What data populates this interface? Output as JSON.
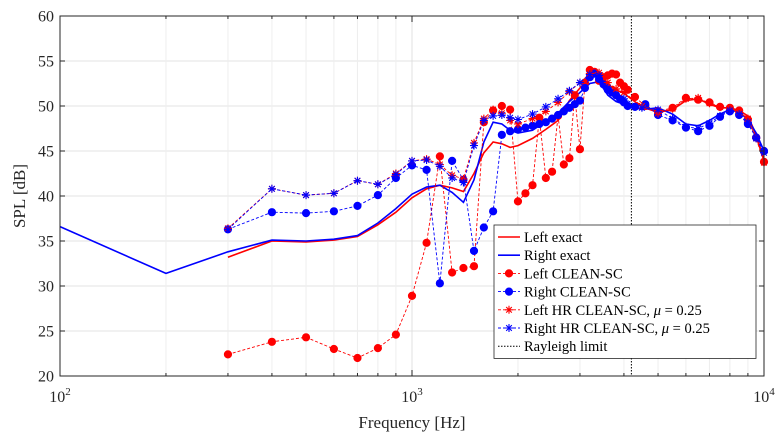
{
  "chart_data": {
    "type": "line",
    "xlabel": "Frequency [Hz]",
    "ylabel": "SPL [dB]",
    "xscale": "log",
    "xlim": [
      100,
      10000
    ],
    "ylim": [
      20,
      60
    ],
    "grid": true,
    "legend_position": "bottom-right",
    "x_ticks": [
      {
        "value": 100,
        "base": "10",
        "exp": "2"
      },
      {
        "value": 1000,
        "base": "10",
        "exp": "3"
      },
      {
        "value": 10000,
        "base": "10",
        "exp": "4"
      }
    ],
    "y_ticks": [
      "20",
      "25",
      "30",
      "35",
      "40",
      "45",
      "50",
      "55",
      "60"
    ],
    "vlines": [
      {
        "name": "Rayleigh limit",
        "x": 4200,
        "color": "#000000",
        "style": "dotted"
      }
    ],
    "series": [
      {
        "name": "Left exact",
        "color": "#ff0000",
        "style": "solid",
        "marker": "none",
        "x": [
          300,
          400,
          500,
          600,
          700,
          800,
          900,
          1000,
          1100,
          1200,
          1300,
          1400,
          1500,
          1600,
          1700,
          1800,
          1900,
          2000,
          2200,
          2400,
          2600,
          2800,
          3000,
          3200,
          3400,
          3600,
          3800,
          4000,
          4500,
          5000,
          5500,
          6000,
          6500,
          7000,
          7500,
          8000,
          8500,
          9000,
          9500,
          10000
        ],
        "y": [
          33.2,
          35.0,
          34.9,
          35.1,
          35.5,
          36.8,
          38.2,
          39.8,
          40.8,
          41.2,
          40.9,
          40.5,
          42.5,
          44.8,
          46.0,
          45.8,
          45.4,
          45.6,
          46.4,
          47.4,
          48.4,
          50.6,
          52.0,
          53.2,
          53.4,
          52.4,
          51.8,
          51.4,
          49.9,
          49.3,
          49.6,
          50.6,
          50.8,
          50.2,
          49.8,
          49.8,
          49.5,
          48.9,
          46.8,
          44.0
        ]
      },
      {
        "name": "Right exact",
        "color": "#0000ff",
        "style": "solid",
        "marker": "none",
        "x": [
          100,
          200,
          300,
          400,
          500,
          600,
          700,
          800,
          900,
          1000,
          1100,
          1200,
          1300,
          1400,
          1500,
          1600,
          1700,
          1800,
          1900,
          2000,
          2200,
          2400,
          2600,
          2800,
          3000,
          3200,
          3400,
          3600,
          3800,
          4000,
          4500,
          5000,
          5500,
          6000,
          6500,
          7000,
          7500,
          8000,
          8500,
          9000,
          9500,
          10000
        ],
        "y": [
          36.6,
          31.4,
          33.8,
          35.1,
          35.0,
          35.2,
          35.6,
          37.0,
          38.6,
          40.2,
          41.0,
          41.2,
          40.4,
          39.3,
          41.8,
          46.0,
          48.2,
          48.0,
          47.3,
          47.0,
          47.3,
          48.3,
          49.2,
          50.5,
          51.5,
          52.5,
          52.7,
          51.2,
          50.5,
          50.2,
          49.6,
          49.8,
          49.1,
          48.0,
          47.8,
          48.4,
          49.1,
          49.6,
          49.3,
          48.5,
          47.0,
          45.0
        ]
      },
      {
        "name": "Left CLEAN-SC",
        "color": "#ff0000",
        "style": "dashed",
        "marker": "circle",
        "x": [
          300,
          400,
          500,
          600,
          700,
          800,
          900,
          1000,
          1100,
          1200,
          1300,
          1400,
          1500,
          1600,
          1700,
          1800,
          1900,
          2000,
          2100,
          2200,
          2300,
          2400,
          2500,
          2600,
          2700,
          2800,
          2900,
          3000,
          3100,
          3200,
          3300,
          3400,
          3500,
          3600,
          3700,
          3800,
          3900,
          4000,
          4100,
          4300,
          4600,
          5000,
          5500,
          6000,
          6500,
          7000,
          7500,
          8000,
          8500,
          9000,
          9500,
          10000
        ],
        "y": [
          22.4,
          23.8,
          24.3,
          23.0,
          22.0,
          23.1,
          24.6,
          28.9,
          34.8,
          44.4,
          31.5,
          32.0,
          32.2,
          48.2,
          49.5,
          50.0,
          49.6,
          39.4,
          40.3,
          41.2,
          48.7,
          42.0,
          42.7,
          48.9,
          43.5,
          44.2,
          51.2,
          45.2,
          52.6,
          54.0,
          53.8,
          52.8,
          53.2,
          53.4,
          53.6,
          53.5,
          52.6,
          52.2,
          51.8,
          51.0,
          50.0,
          49.4,
          49.8,
          50.9,
          50.7,
          50.4,
          49.9,
          49.8,
          49.5,
          48.5,
          46.5,
          43.8
        ]
      },
      {
        "name": "Right CLEAN-SC",
        "color": "#0000ff",
        "style": "dashed",
        "marker": "circle",
        "x": [
          300,
          400,
          500,
          600,
          700,
          800,
          900,
          1000,
          1100,
          1200,
          1300,
          1400,
          1500,
          1600,
          1700,
          1800,
          1900,
          2000,
          2100,
          2200,
          2300,
          2400,
          2500,
          2600,
          2700,
          2800,
          2900,
          3000,
          3100,
          3200,
          3300,
          3400,
          3500,
          3600,
          3700,
          3800,
          3900,
          4000,
          4100,
          4300,
          4600,
          5000,
          5500,
          6000,
          6500,
          7000,
          7500,
          8000,
          8500,
          9000,
          9500,
          10000
        ],
        "y": [
          36.3,
          38.2,
          38.1,
          38.3,
          38.9,
          40.1,
          42.0,
          43.4,
          42.9,
          30.3,
          43.9,
          41.8,
          33.9,
          36.5,
          38.3,
          46.8,
          47.2,
          47.4,
          47.6,
          47.8,
          48.0,
          48.2,
          48.6,
          49.0,
          49.4,
          49.8,
          50.2,
          50.6,
          52.0,
          53.2,
          53.6,
          53.0,
          52.4,
          51.8,
          51.5,
          51.2,
          50.8,
          50.4,
          50.0,
          49.9,
          50.2,
          49.0,
          48.4,
          47.6,
          47.2,
          47.8,
          48.8,
          49.4,
          49.0,
          48.0,
          46.5,
          45.0
        ]
      },
      {
        "name": "Left HR CLEAN-SC, μ = 0.25",
        "label_prefix": "Left HR CLEAN-SC, ",
        "label_mu": "μ",
        "label_suffix": " = 0.25",
        "color": "#ff0000",
        "style": "dashed",
        "marker": "star",
        "x": [
          300,
          400,
          500,
          600,
          700,
          800,
          900,
          1000,
          1100,
          1200,
          1300,
          1400,
          1500,
          1600,
          1700,
          1800,
          1900,
          2000,
          2200,
          2400,
          2600,
          2800,
          3000,
          3200,
          3400,
          3600,
          3800,
          4000,
          4500,
          5000,
          5500,
          6000,
          6500,
          7000,
          7500,
          8000,
          8500,
          9000,
          9500,
          10000
        ],
        "y": [
          36.4,
          40.8,
          40.1,
          40.3,
          41.7,
          41.3,
          42.5,
          43.9,
          44.1,
          43.5,
          42.3,
          41.9,
          45.9,
          48.6,
          49.6,
          49.2,
          48.4,
          48.0,
          48.6,
          49.4,
          50.4,
          51.6,
          52.6,
          53.6,
          53.7,
          52.6,
          51.9,
          51.5,
          50.0,
          49.2,
          49.7,
          50.8,
          50.9,
          50.3,
          49.9,
          49.7,
          49.3,
          48.6,
          46.4,
          43.7
        ]
      },
      {
        "name": "Right HR CLEAN-SC, μ = 0.25",
        "label_prefix": "Right HR CLEAN-SC, ",
        "label_mu": "μ",
        "label_suffix": " = 0.25",
        "color": "#0000ff",
        "style": "dashed",
        "marker": "star",
        "x": [
          300,
          400,
          500,
          600,
          700,
          800,
          900,
          1000,
          1100,
          1200,
          1300,
          1400,
          1500,
          1600,
          1700,
          1800,
          1900,
          2000,
          2200,
          2400,
          2600,
          2800,
          3000,
          3200,
          3400,
          3600,
          3800,
          4000,
          4500,
          5000,
          5500,
          6000,
          6500,
          7000,
          7500,
          8000,
          8500,
          9000,
          9500,
          10000
        ],
        "y": [
          36.3,
          40.8,
          40.1,
          40.3,
          41.7,
          41.3,
          42.4,
          43.9,
          44.0,
          43.3,
          42.0,
          41.5,
          45.6,
          48.4,
          48.9,
          49.0,
          48.7,
          48.5,
          49.1,
          49.9,
          50.8,
          51.7,
          52.6,
          53.5,
          53.4,
          52.0,
          51.2,
          50.8,
          49.8,
          49.6,
          48.6,
          47.7,
          47.5,
          48.1,
          48.9,
          49.5,
          49.1,
          48.2,
          46.4,
          44.8
        ]
      }
    ]
  }
}
